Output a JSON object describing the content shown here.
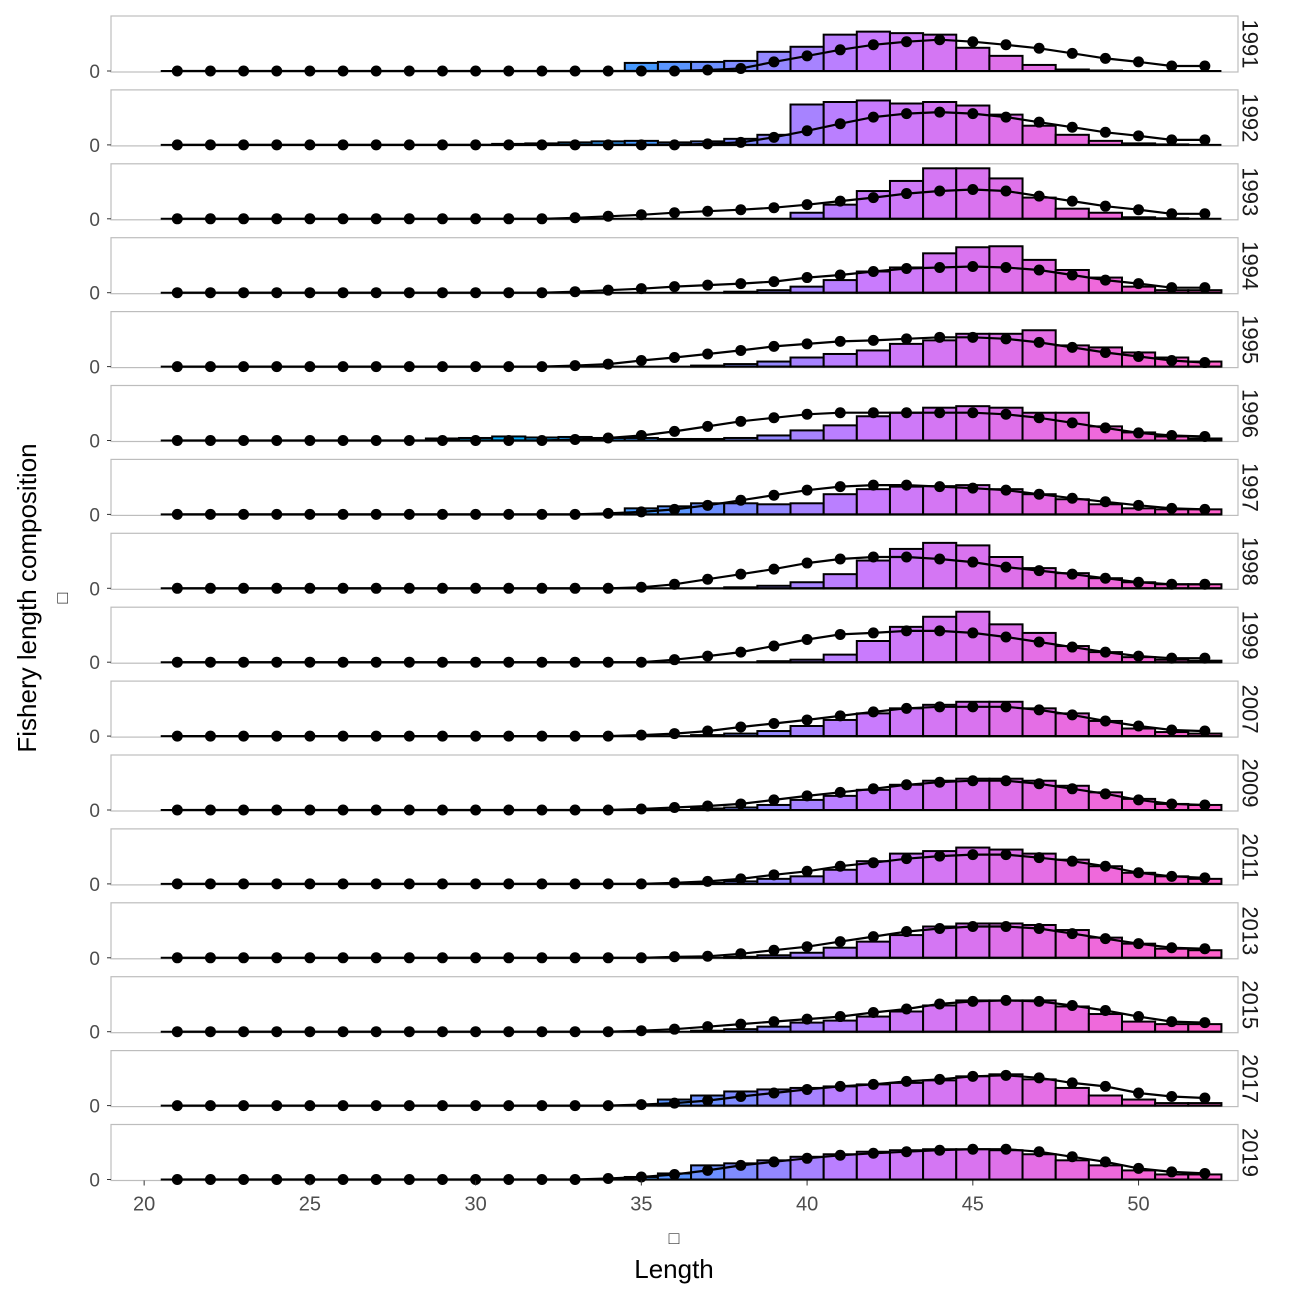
{
  "chart_data": {
    "type": "bar",
    "facet_by": "year",
    "years": [
      "1991",
      "1992",
      "1993",
      "1994",
      "1995",
      "1996",
      "1997",
      "1998",
      "1999",
      "2007",
      "2009",
      "2011",
      "2013",
      "2015",
      "2017",
      "2019"
    ],
    "length_bins": [
      21,
      22,
      23,
      24,
      25,
      26,
      27,
      28,
      29,
      30,
      31,
      32,
      33,
      34,
      35,
      36,
      37,
      38,
      39,
      40,
      41,
      42,
      43,
      44,
      45,
      46,
      47,
      48,
      49,
      50,
      51,
      52
    ],
    "observed": [
      [
        0,
        0,
        0,
        0,
        0,
        0,
        0,
        0,
        0,
        0,
        0,
        0,
        0,
        0,
        0.16,
        0.18,
        0.18,
        0.2,
        0.38,
        0.48,
        0.72,
        0.78,
        0.75,
        0.72,
        0.46,
        0.3,
        0.12,
        0.03,
        0.01,
        0,
        0,
        0
      ],
      [
        0,
        0,
        0,
        0,
        0,
        0,
        0,
        0,
        0,
        0,
        0.02,
        0.03,
        0.05,
        0.07,
        0.08,
        0.05,
        0.07,
        0.12,
        0.2,
        0.8,
        0.85,
        0.88,
        0.82,
        0.85,
        0.78,
        0.6,
        0.38,
        0.2,
        0.08,
        0.03,
        0.01,
        0
      ],
      [
        0,
        0,
        0,
        0,
        0,
        0,
        0,
        0,
        0,
        0,
        0,
        0,
        0,
        0,
        0,
        0,
        0,
        0,
        0,
        0.12,
        0.28,
        0.55,
        0.75,
        1.0,
        1.0,
        0.8,
        0.42,
        0.2,
        0.12,
        0.03,
        0.01,
        0
      ],
      [
        0,
        0,
        0,
        0,
        0,
        0,
        0,
        0,
        0,
        0,
        0,
        0,
        0,
        0,
        0,
        0,
        0,
        0.02,
        0.05,
        0.12,
        0.25,
        0.42,
        0.5,
        0.78,
        0.9,
        0.92,
        0.65,
        0.45,
        0.3,
        0.12,
        0.05,
        0.05
      ],
      [
        0,
        0,
        0,
        0,
        0,
        0,
        0,
        0,
        0,
        0,
        0,
        0,
        0,
        0,
        0,
        0,
        0.02,
        0.05,
        0.1,
        0.18,
        0.25,
        0.32,
        0.45,
        0.52,
        0.65,
        0.65,
        0.72,
        0.42,
        0.38,
        0.28,
        0.18,
        0.1
      ],
      [
        0,
        0,
        0,
        0,
        0,
        0,
        0,
        0,
        0.04,
        0.05,
        0.08,
        0.06,
        0.07,
        0.05,
        0.05,
        0.03,
        0.03,
        0.05,
        0.1,
        0.2,
        0.3,
        0.48,
        0.55,
        0.65,
        0.68,
        0.65,
        0.55,
        0.55,
        0.28,
        0.16,
        0.08,
        0.04
      ],
      [
        0,
        0,
        0,
        0,
        0,
        0,
        0,
        0,
        0,
        0,
        0,
        0,
        0,
        0,
        0.12,
        0.16,
        0.22,
        0.22,
        0.2,
        0.22,
        0.4,
        0.5,
        0.55,
        0.56,
        0.58,
        0.5,
        0.4,
        0.3,
        0.2,
        0.12,
        0.1,
        0.1
      ],
      [
        0,
        0,
        0,
        0,
        0,
        0,
        0,
        0,
        0,
        0,
        0,
        0,
        0,
        0,
        0,
        0,
        0,
        0.02,
        0.05,
        0.12,
        0.28,
        0.55,
        0.78,
        0.9,
        0.85,
        0.62,
        0.4,
        0.3,
        0.2,
        0.12,
        0.08,
        0.08
      ],
      [
        0,
        0,
        0,
        0,
        0,
        0,
        0,
        0,
        0,
        0,
        0,
        0,
        0,
        0,
        0,
        0,
        0,
        0,
        0.02,
        0.05,
        0.15,
        0.42,
        0.7,
        0.9,
        1.0,
        0.75,
        0.58,
        0.32,
        0.2,
        0.1,
        0.05,
        0.03
      ],
      [
        0,
        0,
        0,
        0,
        0,
        0,
        0,
        0,
        0,
        0,
        0,
        0,
        0,
        0,
        0,
        0,
        0.02,
        0.05,
        0.1,
        0.2,
        0.32,
        0.45,
        0.55,
        0.62,
        0.68,
        0.68,
        0.55,
        0.45,
        0.3,
        0.15,
        0.08,
        0.05
      ],
      [
        0,
        0,
        0,
        0,
        0,
        0,
        0,
        0,
        0,
        0,
        0,
        0,
        0,
        0,
        0,
        0,
        0.03,
        0.05,
        0.1,
        0.2,
        0.28,
        0.4,
        0.5,
        0.58,
        0.62,
        0.62,
        0.58,
        0.48,
        0.35,
        0.22,
        0.12,
        0.1
      ],
      [
        0,
        0,
        0,
        0,
        0,
        0,
        0,
        0,
        0,
        0,
        0,
        0,
        0,
        0,
        0,
        0,
        0.02,
        0.05,
        0.1,
        0.15,
        0.28,
        0.45,
        0.6,
        0.65,
        0.72,
        0.68,
        0.6,
        0.48,
        0.35,
        0.22,
        0.15,
        0.1
      ],
      [
        0,
        0,
        0,
        0,
        0,
        0,
        0,
        0,
        0,
        0,
        0,
        0,
        0,
        0,
        0,
        0,
        0,
        0.02,
        0.05,
        0.1,
        0.2,
        0.32,
        0.45,
        0.62,
        0.68,
        0.68,
        0.65,
        0.55,
        0.4,
        0.28,
        0.18,
        0.15
      ],
      [
        0,
        0,
        0,
        0,
        0,
        0,
        0,
        0,
        0,
        0,
        0,
        0,
        0,
        0,
        0,
        0,
        0.02,
        0.05,
        0.1,
        0.18,
        0.22,
        0.3,
        0.4,
        0.52,
        0.62,
        0.62,
        0.62,
        0.5,
        0.35,
        0.2,
        0.15,
        0.15
      ],
      [
        0,
        0,
        0,
        0,
        0,
        0,
        0,
        0,
        0,
        0,
        0,
        0,
        0,
        0,
        0,
        0.12,
        0.2,
        0.28,
        0.32,
        0.35,
        0.38,
        0.42,
        0.45,
        0.5,
        0.58,
        0.62,
        0.52,
        0.35,
        0.2,
        0.12,
        0.05,
        0.05
      ],
      [
        0,
        0,
        0,
        0,
        0,
        0,
        0,
        0,
        0,
        0,
        0,
        0,
        0,
        0,
        0.05,
        0.12,
        0.28,
        0.32,
        0.38,
        0.45,
        0.5,
        0.55,
        0.58,
        0.6,
        0.6,
        0.58,
        0.5,
        0.38,
        0.28,
        0.18,
        0.1,
        0.1
      ]
    ],
    "expected": [
      [
        0,
        0,
        0,
        0,
        0,
        0,
        0,
        0,
        0,
        0,
        0,
        0,
        0,
        0,
        0,
        0,
        0.02,
        0.05,
        0.18,
        0.3,
        0.42,
        0.52,
        0.58,
        0.62,
        0.58,
        0.52,
        0.45,
        0.35,
        0.25,
        0.18,
        0.1,
        0.1
      ],
      [
        0,
        0,
        0,
        0,
        0,
        0,
        0,
        0,
        0,
        0,
        0,
        0,
        0,
        0,
        0,
        0,
        0.02,
        0.05,
        0.15,
        0.28,
        0.42,
        0.55,
        0.62,
        0.65,
        0.62,
        0.55,
        0.45,
        0.35,
        0.25,
        0.18,
        0.1,
        0.1
      ],
      [
        0,
        0,
        0,
        0,
        0,
        0,
        0,
        0,
        0,
        0,
        0,
        0,
        0.02,
        0.05,
        0.08,
        0.12,
        0.15,
        0.18,
        0.22,
        0.28,
        0.35,
        0.42,
        0.5,
        0.55,
        0.58,
        0.55,
        0.45,
        0.35,
        0.25,
        0.18,
        0.1,
        0.1
      ],
      [
        0,
        0,
        0,
        0,
        0,
        0,
        0,
        0,
        0,
        0,
        0,
        0,
        0.02,
        0.05,
        0.08,
        0.12,
        0.15,
        0.18,
        0.22,
        0.3,
        0.35,
        0.42,
        0.48,
        0.5,
        0.52,
        0.5,
        0.45,
        0.35,
        0.25,
        0.18,
        0.1,
        0.1
      ],
      [
        0,
        0,
        0,
        0,
        0,
        0,
        0,
        0,
        0,
        0,
        0,
        0,
        0.02,
        0.05,
        0.12,
        0.18,
        0.25,
        0.32,
        0.4,
        0.45,
        0.5,
        0.52,
        0.55,
        0.58,
        0.58,
        0.55,
        0.48,
        0.38,
        0.28,
        0.2,
        0.12,
        0.08
      ],
      [
        0,
        0,
        0,
        0,
        0,
        0,
        0,
        0,
        0,
        0,
        0,
        0,
        0.02,
        0.05,
        0.1,
        0.18,
        0.28,
        0.38,
        0.45,
        0.52,
        0.55,
        0.55,
        0.55,
        0.55,
        0.55,
        0.52,
        0.45,
        0.35,
        0.25,
        0.15,
        0.1,
        0.08
      ],
      [
        0,
        0,
        0,
        0,
        0,
        0,
        0,
        0,
        0,
        0,
        0,
        0,
        0,
        0.02,
        0.05,
        0.1,
        0.18,
        0.28,
        0.38,
        0.48,
        0.55,
        0.58,
        0.58,
        0.55,
        0.52,
        0.48,
        0.4,
        0.32,
        0.25,
        0.18,
        0.12,
        0.1
      ],
      [
        0,
        0,
        0,
        0,
        0,
        0,
        0,
        0,
        0,
        0,
        0,
        0,
        0,
        0,
        0.02,
        0.08,
        0.18,
        0.28,
        0.38,
        0.5,
        0.58,
        0.62,
        0.62,
        0.58,
        0.52,
        0.42,
        0.35,
        0.28,
        0.2,
        0.12,
        0.08,
        0.08
      ],
      [
        0,
        0,
        0,
        0,
        0,
        0,
        0,
        0,
        0,
        0,
        0,
        0,
        0,
        0,
        0,
        0.05,
        0.12,
        0.2,
        0.32,
        0.45,
        0.55,
        0.58,
        0.62,
        0.62,
        0.58,
        0.5,
        0.4,
        0.3,
        0.2,
        0.12,
        0.08,
        0.08
      ],
      [
        0,
        0,
        0,
        0,
        0,
        0,
        0,
        0,
        0,
        0,
        0,
        0,
        0,
        0,
        0.02,
        0.05,
        0.1,
        0.18,
        0.25,
        0.32,
        0.4,
        0.48,
        0.55,
        0.58,
        0.58,
        0.58,
        0.52,
        0.42,
        0.3,
        0.2,
        0.12,
        0.1
      ],
      [
        0,
        0,
        0,
        0,
        0,
        0,
        0,
        0,
        0,
        0,
        0,
        0,
        0,
        0,
        0.02,
        0.05,
        0.08,
        0.12,
        0.2,
        0.28,
        0.35,
        0.42,
        0.5,
        0.55,
        0.58,
        0.58,
        0.52,
        0.42,
        0.32,
        0.2,
        0.12,
        0.1
      ],
      [
        0,
        0,
        0,
        0,
        0,
        0,
        0,
        0,
        0,
        0,
        0,
        0,
        0,
        0,
        0,
        0.02,
        0.05,
        0.1,
        0.18,
        0.25,
        0.35,
        0.42,
        0.5,
        0.55,
        0.58,
        0.58,
        0.52,
        0.45,
        0.35,
        0.22,
        0.15,
        0.12
      ],
      [
        0,
        0,
        0,
        0,
        0,
        0,
        0,
        0,
        0,
        0,
        0,
        0,
        0,
        0,
        0,
        0.02,
        0.03,
        0.08,
        0.15,
        0.22,
        0.32,
        0.42,
        0.52,
        0.58,
        0.62,
        0.62,
        0.58,
        0.48,
        0.38,
        0.28,
        0.2,
        0.18
      ],
      [
        0,
        0,
        0,
        0,
        0,
        0,
        0,
        0,
        0,
        0,
        0,
        0,
        0,
        0,
        0.02,
        0.05,
        0.1,
        0.15,
        0.2,
        0.25,
        0.3,
        0.38,
        0.45,
        0.55,
        0.6,
        0.62,
        0.6,
        0.52,
        0.42,
        0.3,
        0.2,
        0.18
      ],
      [
        0,
        0,
        0,
        0,
        0,
        0,
        0,
        0,
        0,
        0,
        0,
        0,
        0,
        0,
        0.02,
        0.05,
        0.1,
        0.18,
        0.25,
        0.32,
        0.38,
        0.42,
        0.48,
        0.52,
        0.58,
        0.6,
        0.55,
        0.45,
        0.38,
        0.25,
        0.18,
        0.15
      ],
      [
        0,
        0,
        0,
        0,
        0,
        0,
        0,
        0,
        0,
        0,
        0,
        0,
        0,
        0.02,
        0.05,
        0.1,
        0.18,
        0.28,
        0.35,
        0.42,
        0.48,
        0.52,
        0.55,
        0.58,
        0.6,
        0.6,
        0.55,
        0.45,
        0.35,
        0.22,
        0.15,
        0.12
      ]
    ],
    "panel_ylim": [
      0,
      1.05
    ],
    "y_tick_label": "0",
    "x_ticks": [
      20,
      25,
      30,
      35,
      40,
      45,
      50
    ],
    "x_tick_labels": [
      "20",
      "25",
      "30",
      "35",
      "40",
      "45",
      "50"
    ],
    "xlabel": "Length",
    "ylabel": "Fishery length composition",
    "axis_glyph": "□",
    "bar_palette": [
      "#00BFC4",
      "#00A9FF",
      "#C77CFF",
      "#FF61CC"
    ],
    "expected_line_color": "#000000",
    "panel_border_color": "#BDBDBD",
    "axis_text_color": "#4D4D4D",
    "strip_position": "right",
    "grid": false,
    "legend": "none"
  }
}
